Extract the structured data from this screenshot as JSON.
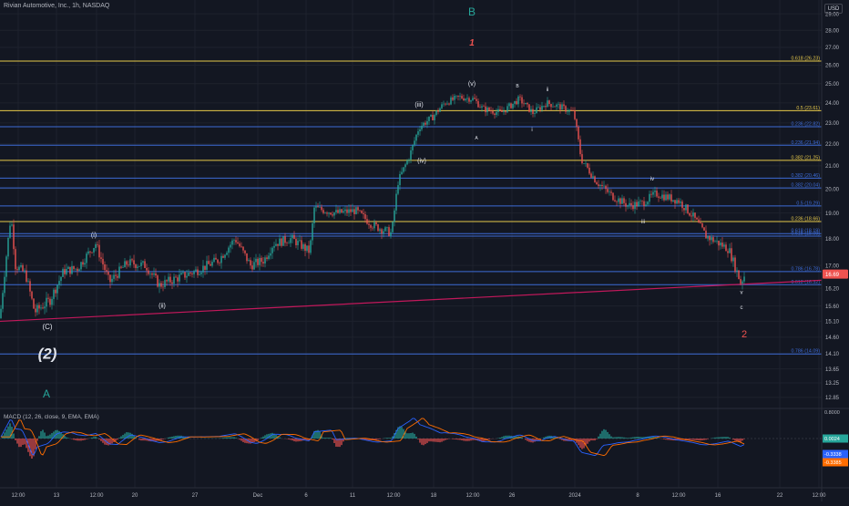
{
  "header": {
    "symbol_title": "Rivian Automotive, Inc., 1h, NASDAQ",
    "currency": "USD"
  },
  "indicator": {
    "label": "MACD (12, 26, close, 9, EMA, EMA)",
    "axis_labels": [
      "0.8000",
      "0.0024",
      "-0.3338",
      "-0.3385"
    ],
    "colors": {
      "macd": "#2962ff",
      "signal": "#ff6d00",
      "hist_up": "#26a69a",
      "hist_down": "#ef5350"
    }
  },
  "colors": {
    "background": "#131722",
    "grid": "#1e222d",
    "fib_gold": "#e6c84a",
    "fib_blue": "#3d6bd6",
    "trendline": "#c2185b",
    "candle_up": "#26a69a",
    "candle_down": "#ef5350",
    "wave_teal": "#26a69a",
    "wave_red": "#ef5350",
    "price_tag": "#ef5350"
  },
  "chart_data": {
    "type": "candlestick",
    "title": "Rivian Automotive, Inc., 1h, NASDAQ",
    "x_tick_labels": [
      "12:00",
      "13",
      "12:00",
      "20",
      "27",
      "Dec",
      "6",
      "11",
      "12:00",
      "18",
      "12:00",
      "26",
      "2024",
      "8",
      "12:00",
      "16",
      "22",
      "12:00"
    ],
    "y_tick_labels": [
      "29.00",
      "28.00",
      "27.00",
      "26.00",
      "25.00",
      "24.00",
      "23.00",
      "22.00",
      "21.00",
      "20.00",
      "19.00",
      "18.00",
      "17.00",
      "16.20",
      "15.60",
      "15.10",
      "14.60",
      "14.10",
      "13.65",
      "13.25",
      "12.85"
    ],
    "ylim": [
      12.6,
      29.4
    ],
    "y_scale": "log",
    "last_price": "16.69",
    "price_path": [
      [
        0,
        15.2
      ],
      [
        12,
        18.9
      ],
      [
        17,
        17.0
      ],
      [
        28,
        16.7
      ],
      [
        38,
        15.4
      ],
      [
        55,
        15.8
      ],
      [
        70,
        16.8
      ],
      [
        85,
        16.9
      ],
      [
        105,
        17.8
      ],
      [
        120,
        16.4
      ],
      [
        140,
        17.1
      ],
      [
        160,
        17.0
      ],
      [
        175,
        16.3
      ],
      [
        190,
        16.5
      ],
      [
        215,
        16.8
      ],
      [
        240,
        17.2
      ],
      [
        258,
        18.0
      ],
      [
        275,
        17.0
      ],
      [
        290,
        17.2
      ],
      [
        300,
        17.8
      ],
      [
        320,
        18.0
      ],
      [
        340,
        17.5
      ],
      [
        345,
        19.2
      ],
      [
        370,
        19.0
      ],
      [
        390,
        19.1
      ],
      [
        410,
        18.5
      ],
      [
        430,
        18.2
      ],
      [
        437,
        20.3
      ],
      [
        450,
        21.5
      ],
      [
        460,
        22.8
      ],
      [
        475,
        23.3
      ],
      [
        488,
        24.0
      ],
      [
        505,
        24.3
      ],
      [
        520,
        24.2
      ],
      [
        530,
        23.7
      ],
      [
        550,
        23.5
      ],
      [
        570,
        24.2
      ],
      [
        585,
        23.5
      ],
      [
        600,
        24.0
      ],
      [
        615,
        23.8
      ],
      [
        630,
        23.5
      ],
      [
        638,
        21.3
      ],
      [
        655,
        20.3
      ],
      [
        672,
        19.7
      ],
      [
        690,
        19.3
      ],
      [
        705,
        19.4
      ],
      [
        720,
        19.8
      ],
      [
        745,
        19.5
      ],
      [
        760,
        18.9
      ],
      [
        775,
        18.1
      ],
      [
        790,
        17.8
      ],
      [
        800,
        17.6
      ],
      [
        813,
        16.4
      ],
      [
        818,
        16.69
      ]
    ],
    "fib_levels": [
      {
        "label": "0.618 (26.23)",
        "value": 26.23,
        "color": "gold"
      },
      {
        "label": "0.5 (23.61)",
        "value": 23.61,
        "color": "gold"
      },
      {
        "label": "0.236 (22.82)",
        "value": 22.82,
        "color": "blue"
      },
      {
        "label": "0.236 (21.94)",
        "value": 21.94,
        "color": "blue"
      },
      {
        "label": "0.382 (21.25)",
        "value": 21.25,
        "color": "gold"
      },
      {
        "label": "0.382 (20.46)",
        "value": 20.46,
        "color": "blue"
      },
      {
        "label": "0.382 (20.04)",
        "value": 20.04,
        "color": "blue"
      },
      {
        "label": "0.5 (19.29)",
        "value": 19.29,
        "color": "blue"
      },
      {
        "label": "0.236 (18.66)",
        "value": 18.66,
        "color": "gold"
      },
      {
        "label": "0.618 (18.19)",
        "value": 18.19,
        "color": "blue"
      },
      {
        "label": "0.618 (18.09)",
        "value": 18.09,
        "color": "blue"
      },
      {
        "label": "0.786 (16.78)",
        "value": 16.78,
        "color": "blue"
      },
      {
        "label": "0.618 (16.32)",
        "value": 16.32,
        "color": "blue"
      },
      {
        "label": "0.786 (14.09)",
        "value": 14.09,
        "color": "blue"
      }
    ],
    "trendline": {
      "from": [
        0,
        15.1
      ],
      "to": [
        930,
        16.52
      ]
    },
    "annotations": [
      {
        "text": "B",
        "x": 518,
        "y": 28.9,
        "color": "teal",
        "size": 12
      },
      {
        "text": "1",
        "x": 518,
        "y": 27.1,
        "color": "red",
        "size": 10,
        "italic": true
      },
      {
        "text": "(v)",
        "x": 518,
        "y": 24.9,
        "color": "white",
        "size": 7
      },
      {
        "text": "B",
        "x": 568,
        "y": 24.8,
        "color": "white",
        "size": 5
      },
      {
        "text": "ii",
        "x": 601,
        "y": 24.6,
        "color": "white",
        "size": 6
      },
      {
        "text": "(iii)",
        "x": 460,
        "y": 23.8,
        "color": "white",
        "size": 7
      },
      {
        "text": "i",
        "x": 584,
        "y": 22.6,
        "color": "white",
        "size": 6
      },
      {
        "text": "A",
        "x": 523,
        "y": 22.2,
        "color": "white",
        "size": 5
      },
      {
        "text": "(iv)",
        "x": 463,
        "y": 21.15,
        "color": "white",
        "size": 7
      },
      {
        "text": "iv",
        "x": 716,
        "y": 20.35,
        "color": "white",
        "size": 6
      },
      {
        "text": "iii",
        "x": 706,
        "y": 18.58,
        "color": "white",
        "size": 6
      },
      {
        "text": "(i)",
        "x": 103,
        "y": 18.05,
        "color": "white",
        "size": 7
      },
      {
        "text": "(ii)",
        "x": 178,
        "y": 15.55,
        "color": "white",
        "size": 7
      },
      {
        "text": "v",
        "x": 814,
        "y": 16.0,
        "color": "white",
        "size": 6
      },
      {
        "text": "c",
        "x": 814,
        "y": 15.5,
        "color": "white",
        "size": 6
      },
      {
        "text": "(C)",
        "x": 52,
        "y": 14.85,
        "color": "white",
        "size": 8
      },
      {
        "text": "2",
        "x": 817,
        "y": 14.6,
        "color": "red",
        "size": 11
      },
      {
        "text": "(2)",
        "x": 52,
        "y": 13.95,
        "color": "white",
        "size": 17,
        "italic": true
      },
      {
        "text": "A",
        "x": 51,
        "y": 12.85,
        "color": "teal",
        "size": 12
      }
    ]
  }
}
